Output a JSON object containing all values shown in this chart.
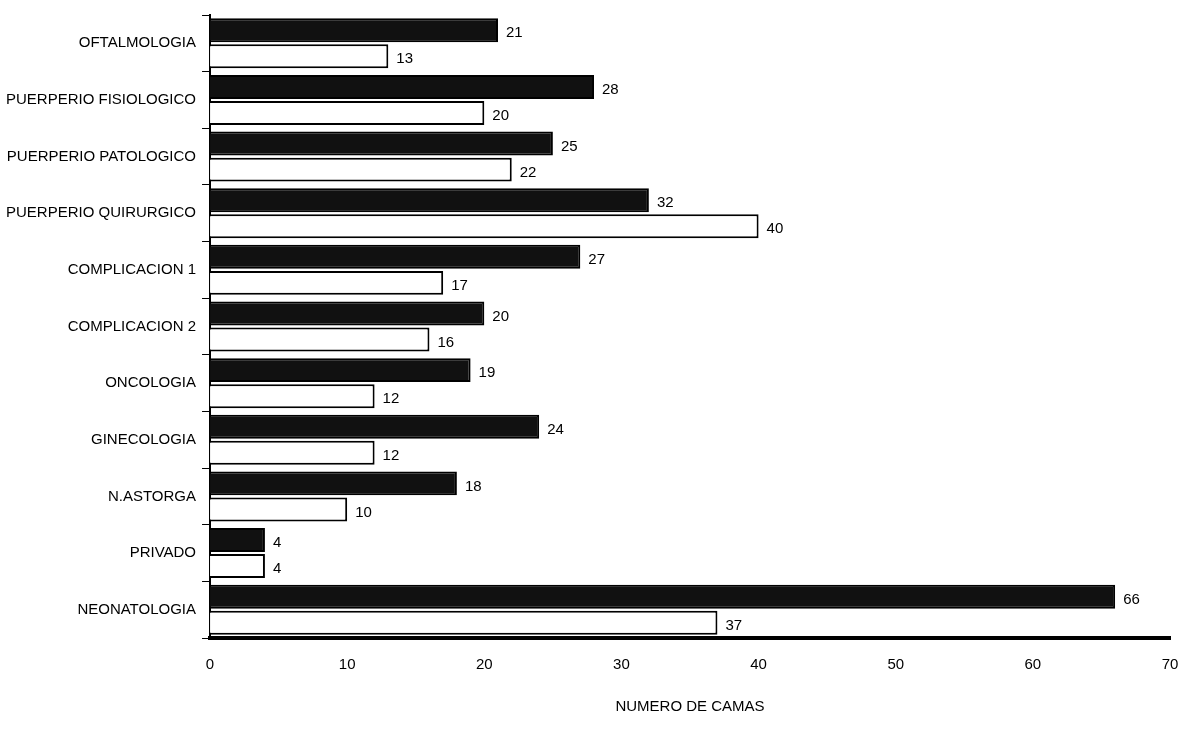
{
  "chart_data": {
    "type": "bar",
    "orientation": "horizontal",
    "xlabel": "NUMERO DE CAMAS",
    "categories": [
      "OFTALMOLOGIA",
      "PUERPERIO FISIOLOGICO",
      "PUERPERIO PATOLOGICO",
      "PUERPERIO QUIRURGICO",
      "COMPLICACION 1",
      "COMPLICACION 2",
      "ONCOLOGIA",
      "GINECOLOGIA",
      "N.ASTORGA",
      "PRIVADO",
      "NEONATOLOGIA"
    ],
    "series": [
      {
        "color": "#111111",
        "values": [
          21,
          28,
          25,
          32,
          27,
          20,
          19,
          24,
          18,
          4,
          66
        ]
      },
      {
        "color": "#ffffff",
        "values": [
          13,
          20,
          22,
          40,
          17,
          16,
          12,
          12,
          10,
          4,
          37
        ]
      }
    ],
    "xlim": [
      0,
      70
    ],
    "xticks": [
      0,
      10,
      20,
      30,
      40,
      50,
      60,
      70
    ],
    "data_labels": true,
    "legend": false
  }
}
